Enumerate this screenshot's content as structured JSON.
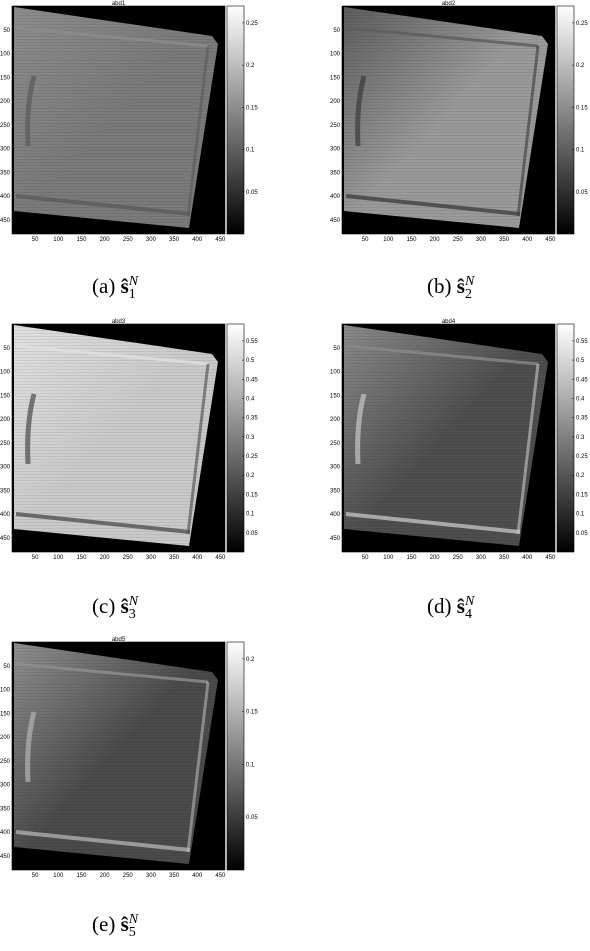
{
  "figure": {
    "panels": [
      {
        "id": "a",
        "title": "abd1",
        "caption_label": "(a)",
        "caption_symbol": "ŝ",
        "caption_sub": "1",
        "caption_sup": "N",
        "y_ticks": [
          "50",
          "100",
          "150",
          "200",
          "250",
          "300",
          "350",
          "400",
          "450"
        ],
        "x_ticks": [
          "50",
          "100",
          "150",
          "200",
          "250",
          "300",
          "350",
          "400",
          "450"
        ],
        "colorbar_ticks": [
          "0.25",
          "0.2",
          "0.15",
          "0.1",
          "0.05"
        ],
        "colors": {
          "base": "#7a7a7a",
          "edge": "#8c8c8c",
          "dark_edge": "#5a5a5a"
        }
      },
      {
        "id": "b",
        "title": "abd2",
        "caption_label": "(b)",
        "caption_symbol": "ŝ",
        "caption_sub": "2",
        "caption_sup": "N",
        "y_ticks": [
          "50",
          "100",
          "150",
          "200",
          "250",
          "300",
          "350",
          "400",
          "450"
        ],
        "x_ticks": [
          "50",
          "100",
          "150",
          "200",
          "250",
          "300",
          "350",
          "400",
          "450"
        ],
        "colorbar_ticks": [
          "0.25",
          "0.2",
          "0.15",
          "0.1",
          "0.05"
        ],
        "colors": {
          "base": "#9a9a9a",
          "edge": "#5c5c5c",
          "dark_edge": "#3a3a3a"
        }
      },
      {
        "id": "c",
        "title": "abd3",
        "caption_label": "(c)",
        "caption_symbol": "ŝ",
        "caption_sub": "3",
        "caption_sup": "N",
        "y_ticks": [
          "50",
          "100",
          "150",
          "200",
          "250",
          "300",
          "350",
          "400",
          "450"
        ],
        "x_ticks": [
          "50",
          "100",
          "150",
          "200",
          "250",
          "300",
          "350",
          "400",
          "450"
        ],
        "colorbar_ticks": [
          "0.55",
          "0.5",
          "0.45",
          "0.4",
          "0.35",
          "0.3",
          "0.25",
          "0.2",
          "0.15",
          "0.1",
          "0.05"
        ],
        "colors": {
          "base": "#c9c9c9",
          "edge": "#e0e0e0",
          "dark_edge": "#4a4a4a"
        }
      },
      {
        "id": "d",
        "title": "abd4",
        "caption_label": "(d)",
        "caption_symbol": "ŝ",
        "caption_sub": "4",
        "caption_sup": "N",
        "y_ticks": [
          "50",
          "100",
          "150",
          "200",
          "250",
          "300",
          "350",
          "400",
          "450"
        ],
        "x_ticks": [
          "50",
          "100",
          "150",
          "200",
          "250",
          "300",
          "350",
          "400",
          "450"
        ],
        "colorbar_ticks": [
          "0.55",
          "0.5",
          "0.45",
          "0.4",
          "0.35",
          "0.3",
          "0.25",
          "0.2",
          "0.15",
          "0.1",
          "0.05"
        ],
        "colors": {
          "base": "#4e4e4e",
          "edge": "#8a8a8a",
          "dark_edge": "#c8c8c8"
        }
      },
      {
        "id": "e",
        "title": "abd5",
        "caption_label": "(e)",
        "caption_symbol": "ŝ",
        "caption_sub": "5",
        "caption_sup": "N",
        "y_ticks": [
          "50",
          "100",
          "150",
          "200",
          "250",
          "300",
          "350",
          "400",
          "450"
        ],
        "x_ticks": [
          "50",
          "100",
          "150",
          "200",
          "250",
          "300",
          "350",
          "400",
          "450"
        ],
        "colorbar_ticks": [
          "0.2",
          "0.15",
          "0.1",
          "0.05"
        ],
        "colors": {
          "base": "#4a4a4a",
          "edge": "#8f8f8f",
          "dark_edge": "#b5b5b5"
        }
      }
    ]
  }
}
